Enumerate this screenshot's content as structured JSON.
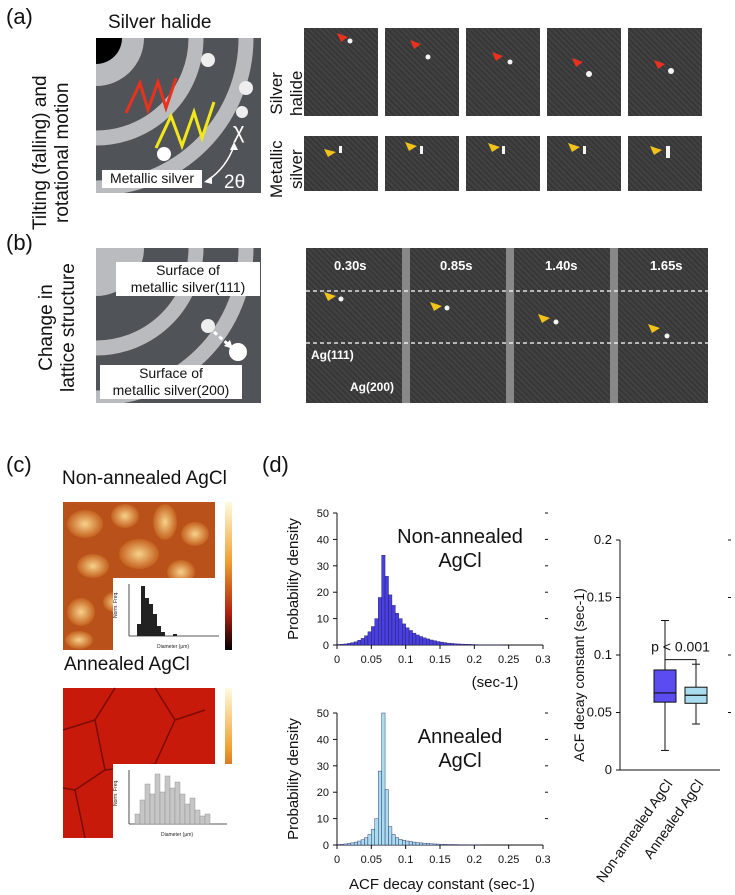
{
  "panels": {
    "a": {
      "letter": "(a)",
      "side_label_line1": "Tilting (falling) and",
      "side_label_line2": "rotational motion",
      "diagram_title": "Silver halide",
      "metallic_label": "Metallic silver",
      "chi_symbol": "χ",
      "two_theta": "2θ",
      "row1_label_line1": "Silver",
      "row1_label_line2": "halide",
      "row2_label_line1": "Metallic",
      "row2_label_line2": "silver"
    },
    "b": {
      "letter": "(b)",
      "side_label_line1": "Change in",
      "side_label_line2": "lattice structure",
      "surface_111_line1": "Surface of",
      "surface_111_line2": "metallic silver(111)",
      "surface_200_line1": "Surface of",
      "surface_200_line2": "metallic silver(200)",
      "times": [
        "0.30s",
        "0.85s",
        "1.40s",
        "1.65s"
      ],
      "ag111": "Ag(111)",
      "ag200": "Ag(200)"
    },
    "c": {
      "letter": "(c)",
      "title_top": "Non-annealed AgCl",
      "title_bottom": "Annealed AgCl",
      "inset_ylabel": "Norm. Freq.",
      "inset_xlabel": "Diameter (μm)"
    },
    "d": {
      "letter": "(d)"
    }
  },
  "colors": {
    "red_arrow": "#e8321e",
    "yellow_arrow": "#f2c21a",
    "hist_top": "#4a3fe0",
    "hist_bottom": "#a9dcef",
    "box_nonannealed": "#5a4cf0",
    "box_annealed": "#a9dcef"
  },
  "chart_data": [
    {
      "type": "bar",
      "name": "hist-top",
      "label_line1": "Non-annealed",
      "label_line2": "AgCl",
      "ylabel": "Probability density",
      "xlabel": "(sec-1)",
      "xlim": [
        0,
        0.3
      ],
      "ylim": [
        0,
        50
      ],
      "xticks": [
        "0",
        "0.05",
        "0.1",
        "0.15",
        "0.2",
        "0.25",
        "0.3"
      ],
      "yticks": [
        "0",
        "10",
        "20",
        "30",
        "40",
        "50"
      ],
      "bin_width": 0.005,
      "bin_start": 0.0,
      "values": [
        0.2,
        0.3,
        0.4,
        0.6,
        0.9,
        1.2,
        1.8,
        2.5,
        3.5,
        5,
        7,
        10,
        18,
        34,
        26,
        19,
        15,
        12,
        10,
        8,
        6.5,
        5.5,
        4.5,
        3.8,
        3.2,
        2.7,
        2.3,
        1.9,
        1.6,
        1.3,
        1.1,
        0.9,
        0.7,
        0.6,
        0.5,
        0.4,
        0.35,
        0.3,
        0.25,
        0.2,
        0.15,
        0.12,
        0.1,
        0.08,
        0.06,
        0.05,
        0.04,
        0.03
      ]
    },
    {
      "type": "bar",
      "name": "hist-bottom",
      "label_line1": "Annealed",
      "label_line2": "AgCl",
      "ylabel": "Probability density",
      "xlabel": "ACF decay constant (sec-1)",
      "xlim": [
        0,
        0.3
      ],
      "ylim": [
        0,
        50
      ],
      "xticks": [
        "0",
        "0.05",
        "0.1",
        "0.15",
        "0.2",
        "0.25",
        "0.3"
      ],
      "yticks": [
        "0",
        "10",
        "20",
        "30",
        "40",
        "50"
      ],
      "bin_width": 0.005,
      "bin_start": 0.0,
      "values": [
        0.2,
        0.3,
        0.4,
        0.6,
        0.8,
        1.1,
        1.5,
        2,
        2.8,
        4,
        6,
        10,
        28,
        50,
        21,
        7,
        4,
        2.8,
        2.2,
        1.8,
        1.5,
        1.3,
        1.1,
        0.9,
        0.8,
        0.7,
        0.6,
        0.5,
        0.4,
        0.35,
        0.3,
        0.25,
        0.2,
        0.18,
        0.15,
        0.12,
        0.1,
        0.08,
        0.06,
        0.05,
        0.04,
        0.03
      ]
    },
    {
      "type": "box",
      "name": "boxplot",
      "ylabel": "ACF decay constant (sec-1)",
      "ylim": [
        0,
        0.2
      ],
      "yticks": [
        "0",
        "0.05",
        "0.1",
        "0.15",
        "0.2"
      ],
      "categories": [
        "Non-annealed AgCl",
        "Annealed AgCl"
      ],
      "boxes": [
        {
          "min": 0.017,
          "q1": 0.059,
          "median": 0.067,
          "q3": 0.087,
          "max": 0.13
        },
        {
          "min": 0.04,
          "q1": 0.058,
          "median": 0.065,
          "q3": 0.072,
          "max": 0.092
        }
      ],
      "annotation": "p < 0.001"
    }
  ]
}
